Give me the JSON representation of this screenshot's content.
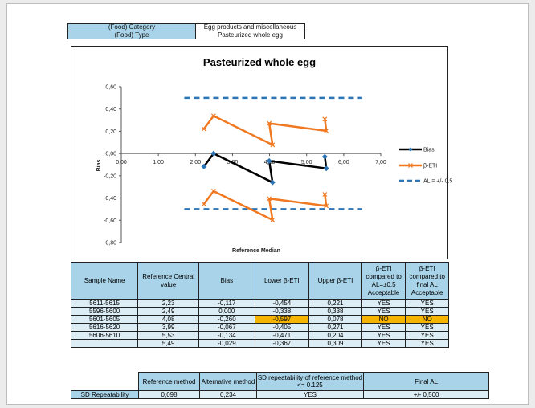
{
  "info": {
    "category_label": "(Food) Category",
    "category_value": "Egg products and miscellaneous",
    "type_label": "(Food) Type",
    "type_value": "Pasteurized whole egg"
  },
  "chart_data": {
    "type": "line",
    "title": "Pasteurized whole egg",
    "xlabel": "Reference Median",
    "ylabel": "Bias",
    "xlim": [
      0,
      7
    ],
    "ylim": [
      -0.8,
      0.6
    ],
    "x_ticks": [
      "0,00",
      "1,00",
      "2,00",
      "3,00",
      "4,00",
      "5,00",
      "6,00",
      "7,00"
    ],
    "y_ticks": [
      "0,60",
      "0,40",
      "0,20",
      "0,00",
      "-0,20",
      "-0,40",
      "-0,60",
      "-0,80"
    ],
    "x_tick_values": [
      0,
      1,
      2,
      3,
      4,
      5,
      6,
      7
    ],
    "y_tick_values": [
      0.6,
      0.4,
      0.2,
      0,
      -0.2,
      -0.4,
      -0.6,
      -0.8
    ],
    "legend": [
      "Bias",
      "β-ETI",
      "AL = +/- 0.5"
    ],
    "legend_position": "right",
    "grid": false,
    "colors": {
      "bias": "#000000",
      "beta": "#f07820",
      "al": "#2e75b6"
    },
    "bias_points": [
      [
        2.23,
        -0.117
      ],
      [
        2.49,
        0.0
      ],
      [
        4.08,
        -0.26
      ],
      [
        3.99,
        -0.067
      ],
      [
        5.53,
        -0.134
      ],
      [
        5.49,
        -0.029
      ]
    ],
    "beta_upper": [
      [
        2.23,
        0.221
      ],
      [
        2.49,
        0.338
      ],
      [
        4.08,
        0.078
      ],
      [
        3.99,
        0.271
      ],
      [
        5.53,
        0.204
      ],
      [
        5.49,
        0.309
      ]
    ],
    "beta_lower": [
      [
        2.23,
        -0.454
      ],
      [
        2.49,
        -0.338
      ],
      [
        4.08,
        -0.597
      ],
      [
        3.99,
        -0.405
      ],
      [
        5.53,
        -0.471
      ],
      [
        5.49,
        -0.367
      ]
    ],
    "al_upper": [
      [
        1.7,
        0.5
      ],
      [
        6.5,
        0.5
      ]
    ],
    "al_lower": [
      [
        1.7,
        -0.5
      ],
      [
        6.5,
        -0.5
      ]
    ]
  },
  "table": {
    "headers": [
      "Sample Name",
      "Reference Central value",
      "Bias",
      "Lower β-ETI",
      "Upper β-ETI",
      "β-ETI compared to AL=±0.5 Acceptable",
      "β-ETI compared to final AL Acceptable"
    ],
    "rows": [
      [
        "5611-5615",
        "2,23",
        "-0,117",
        "-0,454",
        "0,221",
        "YES",
        "YES"
      ],
      [
        "5596-5600",
        "2,49",
        "0,000",
        "-0,338",
        "0,338",
        "YES",
        "YES"
      ],
      [
        "5601-5605",
        "4,08",
        "-0,260",
        "-0,597",
        "0,078",
        "NO",
        "NO"
      ],
      [
        "5616-5620",
        "3,99",
        "-0,067",
        "-0,405",
        "0,271",
        "YES",
        "YES"
      ],
      [
        "5606-5610",
        "5,53",
        "-0,134",
        "-0,471",
        "0,204",
        "YES",
        "YES"
      ],
      [
        "",
        "5,49",
        "-0,029",
        "-0,367",
        "0,309",
        "YES",
        "YES"
      ]
    ],
    "highlight_color": "#f5b400"
  },
  "summary": {
    "headers": [
      "Reference method",
      "Alternative method",
      "SD repeatability of reference method <= 0.125",
      "Final AL"
    ],
    "row_label": "SD Repeatability",
    "values": [
      "0,098",
      "0,234",
      "YES",
      "+/- 0,500"
    ]
  }
}
